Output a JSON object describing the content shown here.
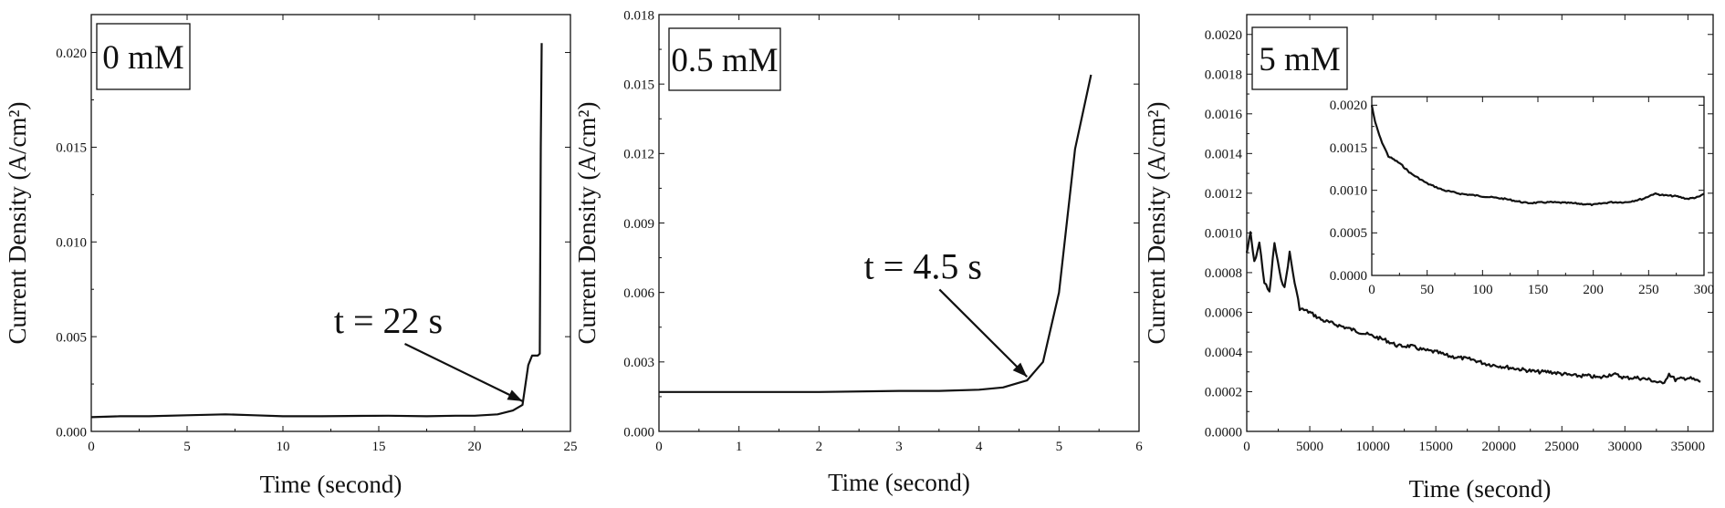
{
  "chart_data": [
    {
      "type": "line",
      "legend": "0 mM",
      "xlabel": "Time (second)",
      "ylabel": "Current Density (A/cm²)",
      "xlim": [
        0,
        25
      ],
      "ylim": [
        0,
        0.022
      ],
      "xticks": [
        0,
        5,
        10,
        15,
        20,
        25
      ],
      "xtick_labels": [
        "0",
        "5",
        "10",
        "15",
        "20",
        "25"
      ],
      "yticks": [
        0,
        0.005,
        0.01,
        0.015,
        0.02
      ],
      "ytick_labels": [
        "0.000",
        "0.005",
        "0.010",
        "0.015",
        "0.020"
      ],
      "series": [
        {
          "x": [
            0,
            1.5,
            3,
            5,
            7,
            8.5,
            10,
            12,
            14,
            15.5,
            17.5,
            19,
            20,
            21.2,
            22,
            22.5,
            22.8,
            23.0,
            23.3,
            23.4,
            23.45,
            23.5
          ],
          "y": [
            0.00075,
            0.0008,
            0.0008,
            0.00085,
            0.0009,
            0.00085,
            0.0008,
            0.0008,
            0.00082,
            0.00083,
            0.0008,
            0.00083,
            0.00083,
            0.0009,
            0.0011,
            0.0014,
            0.0035,
            0.004,
            0.004,
            0.0041,
            0.015,
            0.0205
          ]
        }
      ],
      "annotations": [
        {
          "text": "t = 22 s",
          "x": 22.5,
          "y": 0.0014,
          "text_x": 15.5,
          "text_y": 0.0052
        }
      ]
    },
    {
      "type": "line",
      "legend": "0.5 mM",
      "xlabel": "Time (second)",
      "ylabel": "Current Density (A/cm²)",
      "xlim": [
        0,
        6
      ],
      "ylim": [
        0,
        0.018
      ],
      "xticks": [
        0,
        1,
        2,
        3,
        4,
        5,
        6
      ],
      "xtick_labels": [
        "0",
        "1",
        "2",
        "3",
        "4",
        "5",
        "6"
      ],
      "yticks": [
        0,
        0.003,
        0.006,
        0.009,
        0.012,
        0.015,
        0.018
      ],
      "ytick_labels": [
        "0.000",
        "0.003",
        "0.006",
        "0.009",
        "0.012",
        "0.015",
        "0.018"
      ],
      "series": [
        {
          "x": [
            0,
            1,
            2,
            3,
            3.5,
            4,
            4.3,
            4.6,
            4.8,
            5.0,
            5.2,
            5.4
          ],
          "y": [
            0.0017,
            0.0017,
            0.0017,
            0.00175,
            0.00175,
            0.0018,
            0.0019,
            0.0022,
            0.003,
            0.006,
            0.0122,
            0.0154
          ]
        }
      ],
      "annotations": [
        {
          "text": "t = 4.5 s",
          "x": 4.6,
          "y": 0.0022,
          "text_x": 3.3,
          "text_y": 0.0066
        }
      ]
    },
    {
      "type": "line",
      "legend": "5 mM",
      "xlabel": "Time (second)",
      "ylabel": "Current Density (A/cm²)",
      "xlim": [
        0,
        37000
      ],
      "ylim": [
        0,
        0.0021
      ],
      "xticks": [
        0,
        5000,
        10000,
        15000,
        20000,
        25000,
        30000,
        35000
      ],
      "xtick_labels": [
        "0",
        "5000",
        "10000",
        "15000",
        "20000",
        "25000",
        "30000",
        "35000"
      ],
      "yticks": [
        0,
        0.0002,
        0.0004,
        0.0006,
        0.0008,
        0.001,
        0.0012,
        0.0014,
        0.0016,
        0.0018,
        0.002
      ],
      "ytick_labels": [
        "0.0000",
        "0.0002",
        "0.0004",
        "0.0006",
        "0.0008",
        "0.0010",
        "0.0012",
        "0.0014",
        "0.0016",
        "0.0018",
        "0.0020"
      ],
      "series": [
        {
          "x": [
            0,
            300,
            600,
            1000,
            1400,
            1800,
            2200,
            2600,
            3000,
            3400,
            3800,
            4200,
            5000,
            6000,
            7000,
            8000,
            9000,
            10000,
            11000,
            12000,
            13000,
            14000,
            15000,
            16000,
            17000,
            18000,
            19000,
            20000,
            21000,
            22000,
            23000,
            24000,
            25000,
            26000,
            27000,
            28000,
            29000,
            30000,
            31000,
            32000,
            33000,
            33500,
            34000,
            35000,
            36000
          ],
          "y": [
            0.0009,
            0.001,
            0.00085,
            0.00095,
            0.00075,
            0.0007,
            0.00095,
            0.0008,
            0.00072,
            0.0009,
            0.00075,
            0.00062,
            0.0006,
            0.00056,
            0.00054,
            0.00052,
            0.0005,
            0.00048,
            0.00046,
            0.00043,
            0.00043,
            0.00041,
            0.0004,
            0.00038,
            0.00037,
            0.00036,
            0.00034,
            0.00033,
            0.00032,
            0.00031,
            0.0003,
            0.0003,
            0.00029,
            0.00028,
            0.00028,
            0.00027,
            0.00029,
            0.00027,
            0.00027,
            0.00026,
            0.00024,
            0.00029,
            0.00026,
            0.00027,
            0.00025
          ]
        }
      ],
      "inset": {
        "xlim": [
          0,
          300
        ],
        "ylim": [
          0,
          0.0021
        ],
        "xticks": [
          0,
          50,
          100,
          150,
          200,
          250,
          300
        ],
        "xtick_labels": [
          "0",
          "50",
          "100",
          "150",
          "200",
          "250",
          "300"
        ],
        "yticks": [
          0,
          0.0005,
          0.001,
          0.0015,
          0.002
        ],
        "ytick_labels": [
          "0.0000",
          "0.0005",
          "0.0010",
          "0.0015",
          "0.0020"
        ],
        "series": [
          {
            "x": [
              0,
              3,
              8,
              15,
              25,
              35,
              50,
              65,
              80,
              100,
              120,
              140,
              160,
              180,
              200,
              215,
              230,
              245,
              255,
              265,
              275,
              285,
              295,
              300
            ],
            "y": [
              0.002,
              0.0018,
              0.0016,
              0.0014,
              0.00132,
              0.0012,
              0.00108,
              0.001,
              0.00096,
              0.00093,
              0.0009,
              0.00085,
              0.00086,
              0.00085,
              0.00083,
              0.00086,
              0.00086,
              0.0009,
              0.00096,
              0.00094,
              0.00093,
              0.0009,
              0.00092,
              0.00096
            ]
          }
        ]
      }
    }
  ]
}
